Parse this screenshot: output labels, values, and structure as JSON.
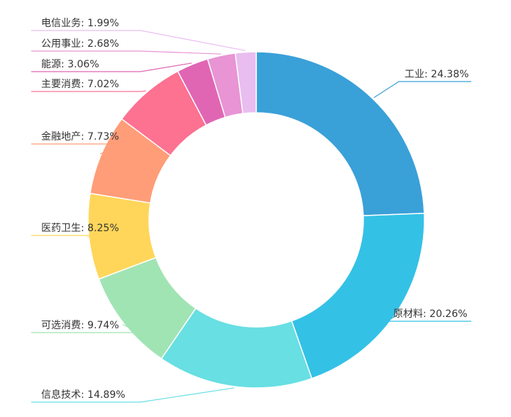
{
  "chart_data": {
    "type": "pie",
    "subtype": "donut",
    "slices": [
      {
        "name": "工业",
        "value": 24.38,
        "label": "工业: 24.38%",
        "color": "#3aa0d8"
      },
      {
        "name": "原材料",
        "value": 20.26,
        "label": "原材料: 20.26%",
        "color": "#34c1e6"
      },
      {
        "name": "信息技术",
        "value": 14.89,
        "label": "信息技术: 14.89%",
        "color": "#67dfe3"
      },
      {
        "name": "可选消费",
        "value": 9.74,
        "label": "可选消费: 9.74%",
        "color": "#a1e4b4"
      },
      {
        "name": "医药卫生",
        "value": 8.25,
        "label": "医药卫生: 8.25%",
        "color": "#ffd65a"
      },
      {
        "name": "金融地产",
        "value": 7.73,
        "label": "金融地产: 7.73%",
        "color": "#ff9d78"
      },
      {
        "name": "主要消费",
        "value": 7.02,
        "label": "主要消费: 7.02%",
        "color": "#fd7191"
      },
      {
        "name": "能源",
        "value": 3.06,
        "label": "能源: 3.06%",
        "color": "#e066b4"
      },
      {
        "name": "公用事业",
        "value": 2.68,
        "label": "公用事业: 2.68%",
        "color": "#e894d5"
      },
      {
        "name": "电信业务",
        "value": 1.99,
        "label": "电信业务: 1.99%",
        "color": "#e9bdf0"
      }
    ],
    "legend": "none",
    "start_angle": "12 o'clock",
    "direction": "clockwise"
  }
}
